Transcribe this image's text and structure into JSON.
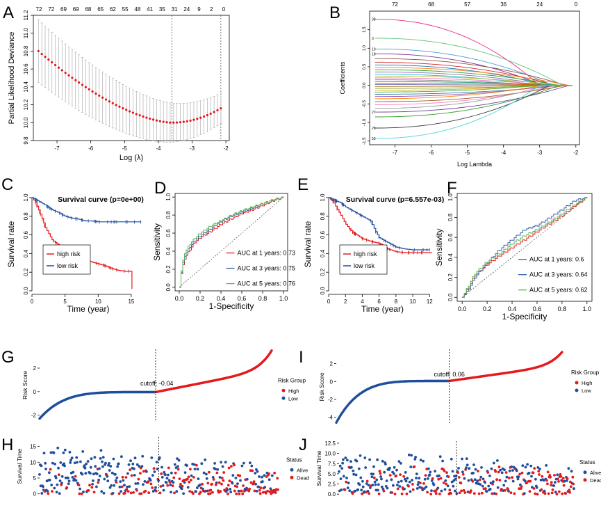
{
  "panel_letters": [
    "A",
    "B",
    "C",
    "D",
    "E",
    "F",
    "G",
    "I",
    "H",
    "J"
  ],
  "colors": {
    "red": "#e41a1c",
    "blue": "#1f4e9c",
    "gray": "#b0b0b0"
  },
  "chart_data": [
    {
      "id": "A",
      "type": "scatter",
      "title": "",
      "xlabel": "Log (λ)",
      "ylabel": "Partial Likelihood Deviance",
      "xlim": [
        -7.7,
        -1.9
      ],
      "ylim": [
        9.8,
        11.2
      ],
      "x_ticks": [
        "-7",
        "-6",
        "-5",
        "-4",
        "-3",
        "-2"
      ],
      "x_tick_values": [
        -7,
        -6,
        -5,
        -4,
        -3,
        -2
      ],
      "y_ticks": [
        "9.8",
        "10.0",
        "10.2",
        "10.4",
        "10.6",
        "10.8",
        "11.0",
        "11.2"
      ],
      "y_tick_values": [
        9.8,
        10.0,
        10.2,
        10.4,
        10.6,
        10.8,
        11.0,
        11.2
      ],
      "top_ticks": [
        "72",
        "72",
        "69",
        "69",
        "68",
        "65",
        "62",
        "55",
        "48",
        "41",
        "35",
        "31",
        "24",
        "9",
        "2",
        "0"
      ],
      "x_range": [
        -7.55,
        -2.15
      ],
      "n_points": 55,
      "curve_min": {
        "x": -3.6,
        "y": 10.0
      },
      "curve_start": 10.8,
      "curve_end": 10.16,
      "error_halfwidth": [
        0.35,
        0.17
      ],
      "vlines": [
        -3.6,
        -2.15
      ]
    },
    {
      "id": "B",
      "type": "line",
      "title": "",
      "xlabel": "Log Lambda",
      "ylabel": "Coefficients",
      "xlim": [
        -7.7,
        -1.9
      ],
      "ylim": [
        -1.6,
        2.0
      ],
      "x_ticks": [
        "-7",
        "-6",
        "-5",
        "-4",
        "-3",
        "-2"
      ],
      "x_tick_values": [
        -7,
        -6,
        -5,
        -4,
        -3,
        -2
      ],
      "y_ticks": [
        "-1.5",
        "-1.0",
        "-0.5",
        "0.0",
        "0.5",
        "1.0",
        "1.5"
      ],
      "y_tick_values": [
        -1.5,
        -1.0,
        -0.5,
        0.0,
        0.5,
        1.0,
        1.5
      ],
      "top_ticks": [
        "72",
        "68",
        "57",
        "36",
        "24",
        "0"
      ],
      "top_tick_values": [
        -7,
        -6,
        -5,
        -4,
        -3,
        -2
      ],
      "path_start_values": [
        1.78,
        1.27,
        0.98,
        0.85,
        0.72,
        0.62,
        0.55,
        0.48,
        0.42,
        0.36,
        0.3,
        0.25,
        0.2,
        0.15,
        0.1,
        0.06,
        0.02,
        -0.03,
        -0.08,
        -0.13,
        -0.18,
        -0.24,
        -0.3,
        -0.36,
        -0.44,
        -0.52,
        -0.62,
        -0.72,
        -0.85,
        -1.15,
        -1.43
      ],
      "right_labels": [
        "38",
        "3",
        "10",
        "18",
        "27",
        "28",
        "53"
      ],
      "right_label_values": [
        1.78,
        1.27,
        0.98,
        0.85,
        -0.72,
        -1.15,
        -1.43
      ]
    },
    {
      "id": "C",
      "type": "line",
      "title": "Survival curve (p=0e+00)",
      "xlabel": "Time (year)",
      "ylabel": "Survival rate",
      "xlim": [
        0,
        17
      ],
      "ylim": [
        0,
        1
      ],
      "x_ticks": [
        "0",
        "5",
        "10",
        "15"
      ],
      "x_tick_values": [
        0,
        5,
        10,
        15
      ],
      "y_ticks": [
        "0.0",
        "0.2",
        "0.4",
        "0.6",
        "0.8",
        "1.0"
      ],
      "y_tick_values": [
        0,
        0.2,
        0.4,
        0.6,
        0.8,
        1.0
      ],
      "legend": [
        "high risk",
        "low risk"
      ],
      "series": [
        {
          "name": "high risk",
          "color": "red",
          "x": [
            0,
            0.5,
            1,
            1.5,
            2,
            3,
            4,
            5,
            6,
            7,
            8,
            9,
            10,
            11,
            12,
            13,
            14,
            15,
            15.1
          ],
          "y": [
            1,
            0.95,
            0.87,
            0.78,
            0.68,
            0.55,
            0.49,
            0.45,
            0.41,
            0.37,
            0.34,
            0.31,
            0.29,
            0.27,
            0.24,
            0.22,
            0.21,
            0.21,
            0.02
          ]
        },
        {
          "name": "low risk",
          "color": "blue",
          "x": [
            0,
            1,
            2,
            3,
            4,
            5,
            6,
            7,
            8,
            9,
            10,
            12,
            14,
            16.5
          ],
          "y": [
            1,
            0.96,
            0.92,
            0.87,
            0.84,
            0.8,
            0.78,
            0.77,
            0.75,
            0.75,
            0.74,
            0.74,
            0.74,
            0.74
          ]
        }
      ]
    },
    {
      "id": "D",
      "type": "line",
      "title": "",
      "xlabel": "1-Specificity",
      "ylabel": "Sensitivity",
      "xlim": [
        -0.04,
        1.04
      ],
      "ylim": [
        -0.04,
        1.04
      ],
      "x_ticks": [
        "0.0",
        "0.2",
        "0.4",
        "0.6",
        "0.8",
        "1.0"
      ],
      "x_tick_values": [
        0,
        0.2,
        0.4,
        0.6,
        0.8,
        1.0
      ],
      "y_ticks": [
        "0.0",
        "0.2",
        "0.4",
        "0.6",
        "0.8",
        "1.0"
      ],
      "y_tick_values": [
        0,
        0.2,
        0.4,
        0.6,
        0.8,
        1.0
      ],
      "legend": [
        "AUC at 1 years: 0.73",
        "AUC at 3 years: 0.75",
        "AUC at 5 years: 0.76"
      ],
      "series": [
        {
          "name": "AUC at 1 years: 0.73",
          "color": "#e41a1c",
          "x": [
            0,
            0.02,
            0.05,
            0.1,
            0.15,
            0.2,
            0.3,
            0.4,
            0.5,
            0.6,
            0.7,
            0.8,
            0.9,
            1
          ],
          "y": [
            0,
            0.18,
            0.32,
            0.42,
            0.5,
            0.55,
            0.62,
            0.7,
            0.76,
            0.82,
            0.86,
            0.91,
            0.96,
            1
          ]
        },
        {
          "name": "AUC at 3 years: 0.75",
          "color": "#3a63a8",
          "x": [
            0,
            0.02,
            0.05,
            0.1,
            0.15,
            0.2,
            0.3,
            0.4,
            0.5,
            0.6,
            0.7,
            0.8,
            0.9,
            1
          ],
          "y": [
            0,
            0.2,
            0.35,
            0.45,
            0.52,
            0.57,
            0.65,
            0.73,
            0.79,
            0.84,
            0.88,
            0.93,
            0.97,
            1
          ]
        },
        {
          "name": "AUC at 5 years: 0.76",
          "color": "#5ab552",
          "x": [
            0,
            0.02,
            0.05,
            0.1,
            0.15,
            0.2,
            0.3,
            0.4,
            0.5,
            0.6,
            0.7,
            0.8,
            0.9,
            1
          ],
          "y": [
            0,
            0.22,
            0.38,
            0.48,
            0.55,
            0.6,
            0.68,
            0.74,
            0.8,
            0.85,
            0.89,
            0.93,
            0.97,
            1
          ]
        }
      ]
    },
    {
      "id": "E",
      "type": "line",
      "title": "Survival curve (p=6.557e-03)",
      "xlabel": "Time (year)",
      "ylabel": "Survival rate",
      "xlim": [
        0,
        12.8
      ],
      "ylim": [
        0,
        1
      ],
      "x_ticks": [
        "0",
        "2",
        "4",
        "6",
        "8",
        "10",
        "12"
      ],
      "x_tick_values": [
        0,
        2,
        4,
        6,
        8,
        10,
        12
      ],
      "y_ticks": [
        "0.0",
        "0.2",
        "0.4",
        "0.6",
        "0.8",
        "1.0"
      ],
      "y_tick_values": [
        0,
        0.2,
        0.4,
        0.6,
        0.8,
        1.0
      ],
      "legend": [
        "high risk",
        "low risk"
      ],
      "series": [
        {
          "name": "high risk",
          "color": "red",
          "x": [
            0,
            0.5,
            1,
            1.5,
            2,
            2.5,
            3,
            4,
            5,
            6,
            7,
            8,
            9,
            10,
            11,
            12.3
          ],
          "y": [
            1,
            0.96,
            0.88,
            0.8,
            0.72,
            0.66,
            0.62,
            0.56,
            0.53,
            0.51,
            0.45,
            0.42,
            0.41,
            0.41,
            0.41,
            0.41
          ]
        },
        {
          "name": "low risk",
          "color": "blue",
          "x": [
            0,
            0.5,
            1,
            1.5,
            2,
            3,
            4,
            5,
            5.5,
            6,
            7,
            8,
            9,
            10,
            11,
            12
          ],
          "y": [
            1,
            0.98,
            0.96,
            0.94,
            0.9,
            0.85,
            0.8,
            0.75,
            0.65,
            0.57,
            0.52,
            0.47,
            0.45,
            0.44,
            0.44,
            0.44
          ]
        }
      ]
    },
    {
      "id": "F",
      "type": "line",
      "title": "",
      "xlabel": "1-Specificity",
      "ylabel": "Sensitivity",
      "xlim": [
        -0.04,
        1.04
      ],
      "ylim": [
        -0.04,
        1.04
      ],
      "x_ticks": [
        "0.0",
        "0.2",
        "0.4",
        "0.6",
        "0.8",
        "1.0"
      ],
      "x_tick_values": [
        0,
        0.2,
        0.4,
        0.6,
        0.8,
        1.0
      ],
      "y_ticks": [
        "0.0",
        "0.2",
        "0.4",
        "0.6",
        "0.8",
        "1.0"
      ],
      "y_tick_values": [
        0,
        0.2,
        0.4,
        0.6,
        0.8,
        1.0
      ],
      "legend": [
        "AUC at 1 years: 0.6",
        "AUC at 3 years: 0.64",
        "AUC at 5 years: 0.62"
      ],
      "series": [
        {
          "name": "AUC at 1 years: 0.6",
          "color": "#e41a1c",
          "x": [
            0,
            0.05,
            0.1,
            0.2,
            0.3,
            0.4,
            0.5,
            0.6,
            0.7,
            0.8,
            0.9,
            1
          ],
          "y": [
            0,
            0.1,
            0.22,
            0.33,
            0.42,
            0.5,
            0.58,
            0.66,
            0.74,
            0.82,
            0.92,
            1
          ]
        },
        {
          "name": "AUC at 3 years: 0.64",
          "color": "#3a63a8",
          "x": [
            0,
            0.05,
            0.1,
            0.2,
            0.3,
            0.4,
            0.5,
            0.6,
            0.7,
            0.8,
            0.9,
            1
          ],
          "y": [
            0,
            0.08,
            0.2,
            0.35,
            0.48,
            0.58,
            0.68,
            0.72,
            0.8,
            0.88,
            0.97,
            1
          ]
        },
        {
          "name": "AUC at 5 years: 0.62",
          "color": "#5ab552",
          "x": [
            0,
            0.05,
            0.1,
            0.2,
            0.3,
            0.4,
            0.5,
            0.6,
            0.7,
            0.8,
            0.9,
            1
          ],
          "y": [
            0,
            0.12,
            0.24,
            0.36,
            0.44,
            0.54,
            0.62,
            0.68,
            0.76,
            0.84,
            0.93,
            1
          ]
        }
      ]
    },
    {
      "id": "G",
      "type": "scatter",
      "title": "",
      "xlabel": "",
      "ylabel": "Risk Score",
      "ylim": [
        -2.5,
        3.6
      ],
      "y_ticks": [
        "-2",
        "0",
        "2"
      ],
      "y_tick_values": [
        -2,
        0,
        2
      ],
      "n": 420,
      "cutoff_fraction": 0.5,
      "cutoff_label": "cutoff: -0.04",
      "low_range": [
        -2.3,
        -0.04
      ],
      "high_range": [
        -0.04,
        3.5
      ],
      "legend_title": "Risk Group",
      "legend": [
        "High",
        "Low"
      ]
    },
    {
      "id": "I",
      "type": "scatter",
      "title": "",
      "xlabel": "",
      "ylabel": "Risk Score",
      "ylim": [
        -4.8,
        3.6
      ],
      "y_ticks": [
        "-4",
        "-2",
        "0",
        "2"
      ],
      "y_tick_values": [
        -4,
        -2,
        0,
        2
      ],
      "n": 400,
      "cutoff_fraction": 0.5,
      "cutoff_label": "cutoff: 0.06",
      "low_range": [
        -4.6,
        0.06
      ],
      "high_range": [
        0.06,
        3.3
      ],
      "legend_title": "Risk Group",
      "legend": [
        "High",
        "Low"
      ]
    },
    {
      "id": "H",
      "type": "scatter",
      "title": "",
      "xlabel": "",
      "ylabel": "Survival Time",
      "ylim": [
        -0.5,
        18
      ],
      "y_ticks": [
        "0",
        "5",
        "10",
        "15"
      ],
      "y_tick_values": [
        0,
        5,
        10,
        15
      ],
      "n": 420,
      "cutoff_fraction": 0.5,
      "max_time": 17,
      "legend_title": "Status",
      "legend": [
        "Alive",
        "Dead"
      ]
    },
    {
      "id": "J",
      "type": "scatter",
      "title": "",
      "xlabel": "",
      "ylabel": "Survival Time",
      "ylim": [
        -0.3,
        13
      ],
      "y_ticks": [
        "0.0",
        "2.5",
        "5.0",
        "7.5",
        "10.0",
        "12.5"
      ],
      "y_tick_values": [
        0,
        2.5,
        5,
        7.5,
        10,
        12.5
      ],
      "n": 400,
      "cutoff_fraction": 0.5,
      "max_time": 12.3,
      "legend_title": "Status",
      "legend": [
        "Alive",
        "Dead"
      ]
    }
  ]
}
